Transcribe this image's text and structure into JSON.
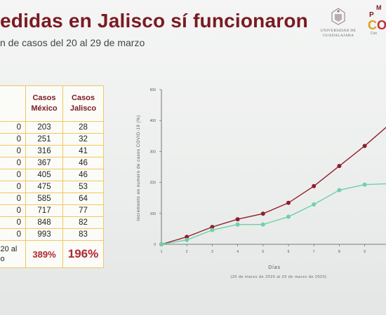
{
  "slide": {
    "title": "edidas en Jalisco sí funcionaron",
    "subtitle": "n de casos del 20 al 29 de marzo",
    "logo_udg_text": [
      "UNIVERSIDAD DE",
      "GUADALAJARA"
    ],
    "logo_right_text": "M… P… CO… Coo…"
  },
  "table": {
    "headers": [
      "",
      "Casos\nMéxico",
      "Casos\nJalisco"
    ],
    "rows": [
      [
        "0",
        "203",
        "28"
      ],
      [
        "0",
        "251",
        "32"
      ],
      [
        "0",
        "316",
        "41"
      ],
      [
        "0",
        "367",
        "46"
      ],
      [
        "0",
        "405",
        "46"
      ],
      [
        "0",
        "475",
        "53"
      ],
      [
        "0",
        "585",
        "64"
      ],
      [
        "0",
        "717",
        "77"
      ],
      [
        "0",
        "848",
        "82"
      ],
      [
        "0",
        "993",
        "83"
      ]
    ],
    "total_label_1": "l 20 al",
    "total_label_2": "zo",
    "pct_mexico": "389%",
    "pct_jalisco": "196%"
  },
  "chart_data": {
    "type": "line",
    "ylabel": "Incremento en numero de casos COVID-19 (%)",
    "xlabel": "Días",
    "xsub": "(20 de marzo de 2020 al 29 de marzo de 2020)",
    "ylim": [
      0,
      500
    ],
    "yticks": [
      0,
      100,
      200,
      300,
      400,
      500
    ],
    "x": [
      1,
      2,
      3,
      4,
      5,
      6,
      7,
      8,
      9,
      10
    ],
    "xticks": [
      1,
      2,
      3,
      4,
      5,
      6,
      7,
      8,
      9
    ],
    "series": [
      {
        "name": "",
        "color": "#8e1f2a",
        "values": [
          0,
          24,
          56,
          81,
          99,
          134,
          188,
          253,
          318,
          389
        ]
      },
      {
        "name": "",
        "color": "#6fd0aa",
        "values": [
          0,
          14,
          46,
          64,
          64,
          89,
          129,
          175,
          193,
          196
        ]
      }
    ],
    "grid": false
  }
}
